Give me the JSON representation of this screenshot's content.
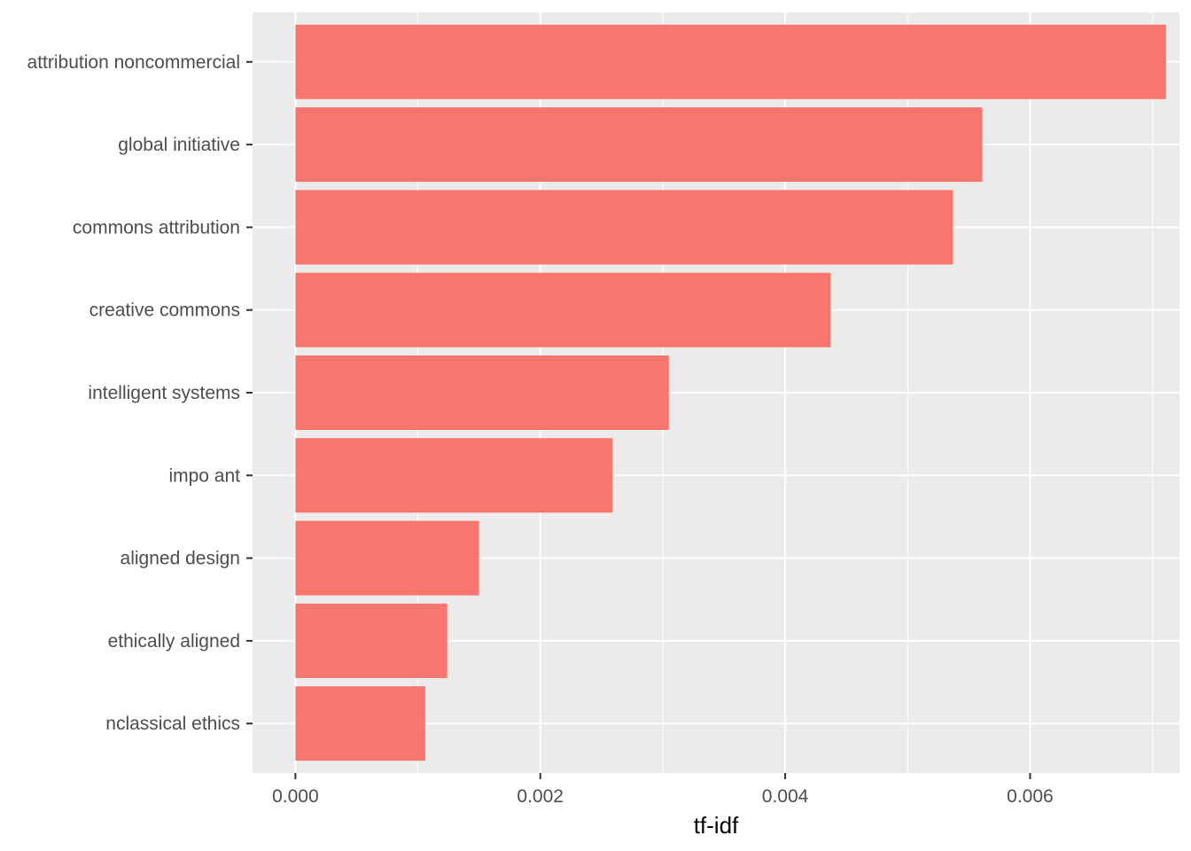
{
  "chart_data": {
    "type": "bar",
    "orientation": "horizontal",
    "categories": [
      "attribution noncommercial",
      "global initiative",
      "commons attribution",
      "creative commons",
      "intelligent systems",
      "impo ant",
      "aligned design",
      "ethically aligned",
      "nclassical ethics"
    ],
    "values": [
      0.00711,
      0.00561,
      0.00537,
      0.00437,
      0.00305,
      0.00259,
      0.0015,
      0.00124,
      0.00106
    ],
    "xlabel": "tf-idf",
    "ylabel": "",
    "xlim": [
      -0.00035,
      0.00722
    ],
    "x_ticks": [
      0,
      0.002,
      0.004,
      0.006
    ],
    "x_tick_labels": [
      "0.000",
      "0.002",
      "0.004",
      "0.006"
    ],
    "grid": true,
    "legend": "none",
    "colors": {
      "bar": "#F8766D",
      "panel_background": "#EBEBEB",
      "grid": "#FFFFFF",
      "tick_text": "#4D4D4D",
      "axis_title": "#000000"
    }
  }
}
